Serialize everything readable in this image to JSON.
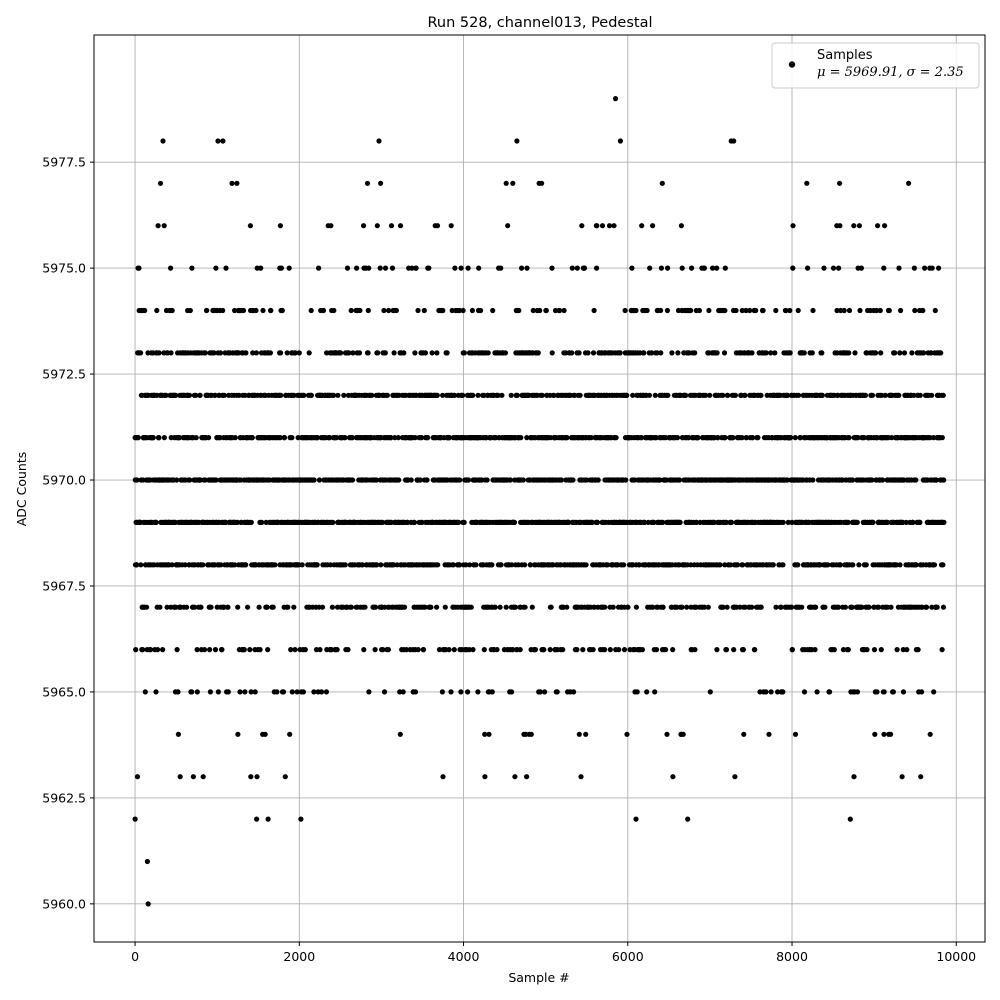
{
  "chart_data": {
    "type": "scatter",
    "title": "Run 528, channel013, Pedestal",
    "xlabel": "Sample #",
    "ylabel": "ADC Counts",
    "xlim": [
      -500,
      10350
    ],
    "ylim": [
      5959.1,
      5980.5
    ],
    "x_ticks": [
      0,
      2000,
      4000,
      6000,
      8000,
      10000
    ],
    "y_ticks": [
      5960.0,
      5962.5,
      5965.0,
      5967.5,
      5970.0,
      5972.5,
      5975.0,
      5977.5
    ],
    "x_tick_labels": [
      "0",
      "2000",
      "4000",
      "6000",
      "8000",
      "10000"
    ],
    "y_tick_labels": [
      "5960.0",
      "5962.5",
      "5965.0",
      "5967.5",
      "5970.0",
      "5972.5",
      "5975.0",
      "5977.5"
    ],
    "grid": true,
    "legend": {
      "placement": "top-right",
      "series_label": "Samples",
      "stats_prefix": "μ = 5969.91, ",
      "stats_suffix": "σ = 2.35"
    },
    "series": [
      {
        "name": "Samples",
        "color": "#000000",
        "x_min": 0,
        "x_max": 9850,
        "mean": 5969.91,
        "std": 2.35,
        "notable_points": [
          {
            "x": 160,
            "y": 5960
          },
          {
            "x": 150,
            "y": 5961
          },
          {
            "x": 0,
            "y": 5962
          },
          {
            "x": 1480,
            "y": 5962
          },
          {
            "x": 1620,
            "y": 5962
          },
          {
            "x": 2020,
            "y": 5962
          },
          {
            "x": 6100,
            "y": 5962
          },
          {
            "x": 6730,
            "y": 5962
          },
          {
            "x": 8710,
            "y": 5962
          },
          {
            "x": 340,
            "y": 5978
          },
          {
            "x": 1010,
            "y": 5978
          },
          {
            "x": 1070,
            "y": 5978
          },
          {
            "x": 2970,
            "y": 5978
          },
          {
            "x": 4650,
            "y": 5978
          },
          {
            "x": 5910,
            "y": 5978
          },
          {
            "x": 7260,
            "y": 5978
          },
          {
            "x": 7290,
            "y": 5978
          },
          {
            "x": 5850,
            "y": 5979
          },
          {
            "x": 310,
            "y": 5977
          },
          {
            "x": 1180,
            "y": 5977
          },
          {
            "x": 1240,
            "y": 5977
          },
          {
            "x": 2830,
            "y": 5977
          },
          {
            "x": 2990,
            "y": 5977
          },
          {
            "x": 4520,
            "y": 5977
          },
          {
            "x": 4600,
            "y": 5977
          },
          {
            "x": 4920,
            "y": 5977
          },
          {
            "x": 4950,
            "y": 5977
          },
          {
            "x": 6420,
            "y": 5977
          },
          {
            "x": 8180,
            "y": 5977
          },
          {
            "x": 8580,
            "y": 5977
          },
          {
            "x": 9420,
            "y": 5977
          }
        ]
      }
    ]
  }
}
